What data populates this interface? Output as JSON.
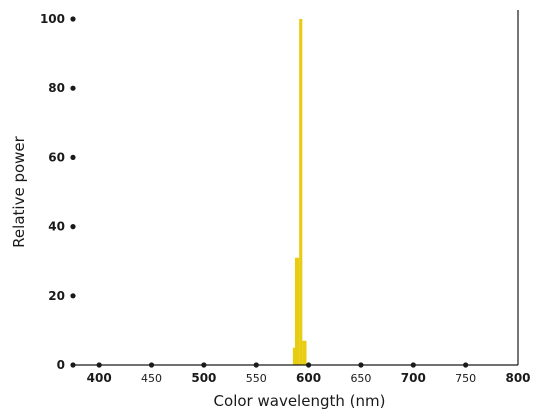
{
  "chart_data": {
    "type": "bar",
    "xlabel": "Color wavelength (nm)",
    "ylabel": "Relative power",
    "xlim": [
      375,
      800
    ],
    "ylim": [
      0,
      100
    ],
    "x_ticks": [
      {
        "value": 400,
        "label": "400",
        "major": true
      },
      {
        "value": 450,
        "label": "450",
        "major": false
      },
      {
        "value": 500,
        "label": "500",
        "major": true
      },
      {
        "value": 550,
        "label": "550",
        "major": false
      },
      {
        "value": 600,
        "label": "600",
        "major": true
      },
      {
        "value": 650,
        "label": "650",
        "major": false
      },
      {
        "value": 700,
        "label": "700",
        "major": true
      },
      {
        "value": 750,
        "label": "750",
        "major": false
      },
      {
        "value": 800,
        "label": "800",
        "major": true
      }
    ],
    "y_ticks": [
      {
        "value": 0,
        "label": "0"
      },
      {
        "value": 20,
        "label": "20"
      },
      {
        "value": 40,
        "label": "40"
      },
      {
        "value": 60,
        "label": "60"
      },
      {
        "value": 80,
        "label": "80"
      },
      {
        "value": 100,
        "label": "100"
      }
    ],
    "bar_color": "#e8cc10",
    "bars": [
      {
        "x0": 585,
        "x1": 587,
        "value": 5
      },
      {
        "x0": 587,
        "x1": 591,
        "value": 31
      },
      {
        "x0": 591,
        "x1": 594,
        "value": 100
      },
      {
        "x0": 594,
        "x1": 598,
        "value": 7
      }
    ],
    "grid": false
  }
}
